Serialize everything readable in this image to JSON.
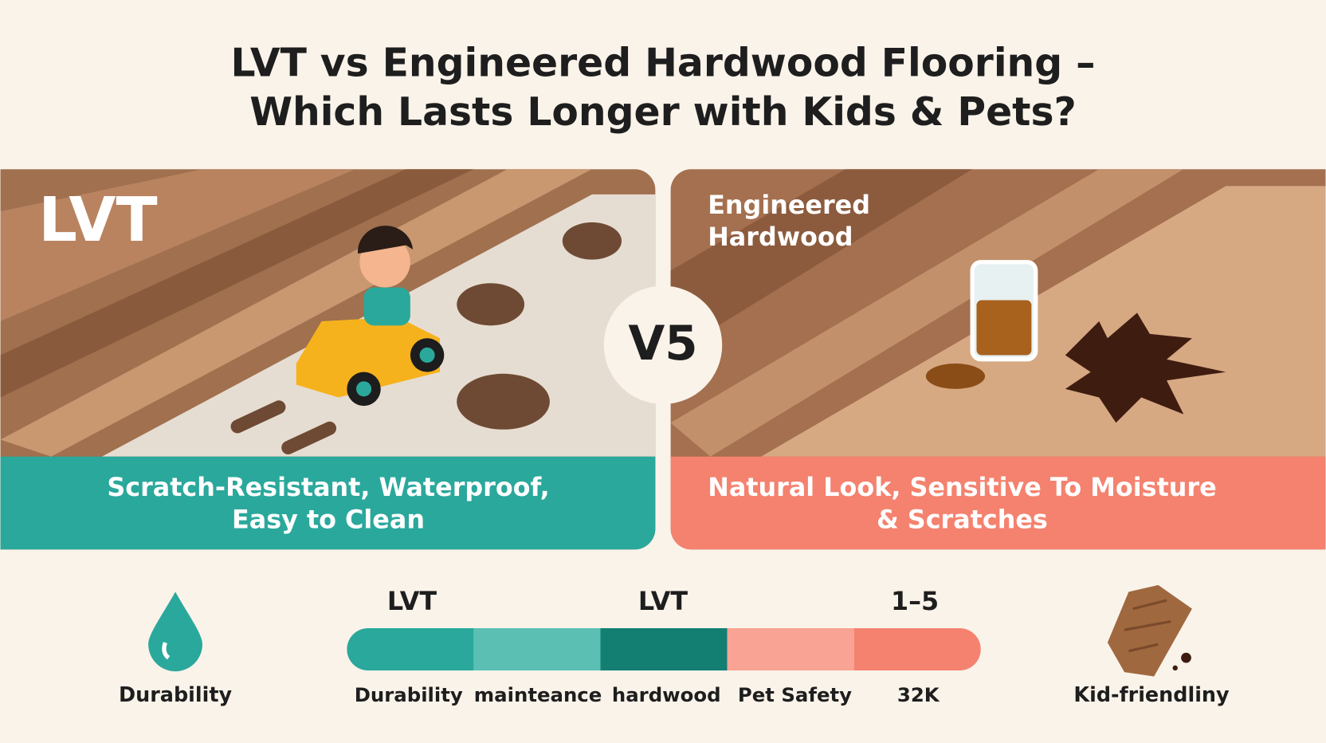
{
  "header": {
    "title_lines": [
      "LVT vs Engineered Hardwood Flooring –",
      "Which Lasts Longer with Kids & Pets?"
    ]
  },
  "left_panel": {
    "label": "LVT",
    "caption_lines": [
      "Scratch-Resistant, Waterproof,",
      "Easy to Clean"
    ]
  },
  "versus": "V5",
  "right_panel": {
    "label_lines": [
      "Engineered",
      "Hardwood"
    ],
    "caption_lines": [
      "Natural Look, Sensitive To Moisture",
      "& Scratches"
    ]
  },
  "legend": {
    "left_icon_label": "Durability",
    "right_icon_label": "Kid-friendliny",
    "top_labels": [
      "LVT",
      "LVT",
      "1–5"
    ],
    "segments": [
      "Durability",
      "mainteance",
      "hardwood",
      "Pet Safety",
      "32K"
    ]
  }
}
